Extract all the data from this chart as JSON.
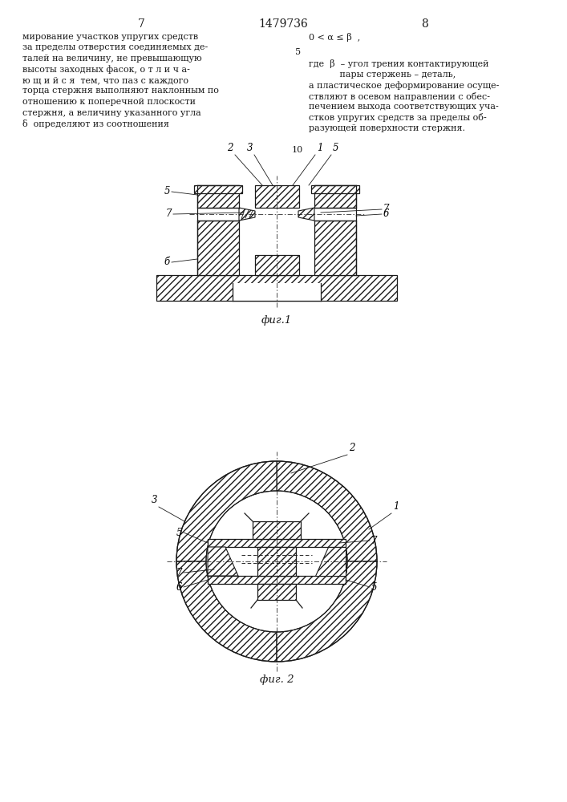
{
  "page_number_left": "7",
  "patent_number": "1479736",
  "page_number_right": "8",
  "text_left_lines": [
    "мирование участков упругих средств",
    "за пределы отверстия соединяемых де-",
    "талей на величину, не превышающую",
    "высоты заходных фасок, о т л и ч а-",
    "ю щ и й с я  тем, что паз с каждого",
    "торца стержня выполняют наклонным по",
    "отношению к поперечной плоскости",
    "стержня, а величину указанного угла",
    "δ  определяют из соотношения"
  ],
  "text_right_top": "0 < α ≤ β  ,",
  "line_number_5": "5",
  "line_number_10": "10",
  "text_right_lines": [
    "где  β  – угол трения контактирующей",
    "           пары стержень – деталь,",
    "а пластическое деформирование осуще-",
    "ствляют в осевом направлении с обес-",
    "печением выхода соответствующих уча-",
    "стков упругих средств за пределы об-",
    "разующей поверхности стержня."
  ],
  "fig1_caption": "фиг.1",
  "fig2_caption": "фиг. 2",
  "line_color": "#1a1a1a",
  "font_size_text": 8.0,
  "font_size_caption": 9.5,
  "font_size_header": 10,
  "font_size_label": 8.5
}
